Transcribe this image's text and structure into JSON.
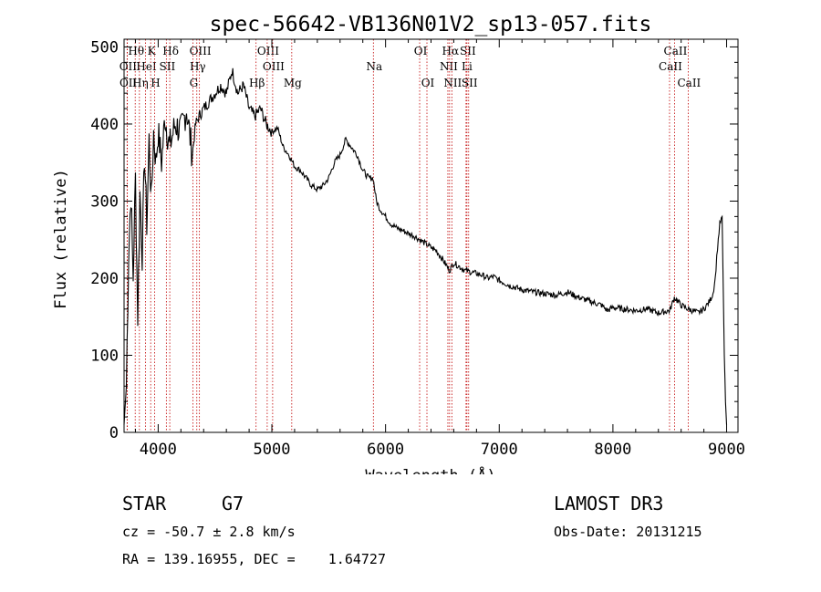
{
  "chart_data": {
    "type": "line",
    "title": "spec-56642-VB136N01V2_sp13-057.fits",
    "xlabel": "Wavelength (Å)",
    "ylabel": "Flux (relative)",
    "xlim": [
      3700,
      9100
    ],
    "ylim": [
      0,
      510
    ],
    "xticks": [
      4000,
      5000,
      6000,
      7000,
      8000,
      9000
    ],
    "yticks": [
      0,
      100,
      200,
      300,
      400,
      500
    ],
    "grid": false,
    "series": [
      {
        "name": "Flux",
        "x": [
          3700,
          3720,
          3740,
          3760,
          3780,
          3800,
          3820,
          3840,
          3860,
          3880,
          3900,
          3920,
          3940,
          3960,
          3980,
          4000,
          4030,
          4060,
          4100,
          4150,
          4200,
          4250,
          4300,
          4330,
          4360,
          4400,
          4450,
          4500,
          4550,
          4600,
          4650,
          4700,
          4750,
          4800,
          4850,
          4900,
          4950,
          5000,
          5050,
          5100,
          5150,
          5200,
          5250,
          5300,
          5350,
          5400,
          5450,
          5500,
          5550,
          5600,
          5650,
          5700,
          5750,
          5800,
          5850,
          5890,
          5920,
          5950,
          6000,
          6050,
          6100,
          6150,
          6200,
          6250,
          6300,
          6350,
          6400,
          6450,
          6500,
          6563,
          6600,
          6650,
          6700,
          6750,
          6800,
          6850,
          6900,
          6950,
          7000,
          7100,
          7200,
          7300,
          7400,
          7500,
          7600,
          7700,
          7800,
          7900,
          7950,
          8000,
          8100,
          8200,
          8300,
          8400,
          8500,
          8540,
          8600,
          8660,
          8700,
          8750,
          8800,
          8850,
          8880,
          8900,
          8920,
          8940,
          8960,
          8980,
          8990,
          9000
        ],
        "values": [
          10,
          60,
          230,
          310,
          200,
          330,
          150,
          310,
          230,
          360,
          270,
          380,
          300,
          390,
          350,
          390,
          350,
          410,
          370,
          400,
          390,
          420,
          360,
          400,
          410,
          420,
          430,
          440,
          450,
          440,
          470,
          440,
          450,
          420,
          410,
          420,
          400,
          390,
          395,
          370,
          360,
          345,
          340,
          330,
          320,
          315,
          320,
          330,
          350,
          360,
          380,
          370,
          360,
          340,
          330,
          330,
          300,
          290,
          280,
          270,
          265,
          262,
          258,
          255,
          250,
          245,
          240,
          235,
          225,
          210,
          220,
          215,
          210,
          208,
          206,
          204,
          200,
          202,
          197,
          190,
          185,
          182,
          180,
          178,
          182,
          175,
          170,
          165,
          158,
          162,
          160,
          158,
          160,
          155,
          158,
          175,
          165,
          160,
          158,
          155,
          160,
          170,
          180,
          200,
          240,
          270,
          280,
          100,
          40,
          10
        ]
      }
    ],
    "lines": [
      {
        "name": "Hθ",
        "wave": 3798,
        "row": 1
      },
      {
        "name": "OII",
        "wave": 3727,
        "row": 2
      },
      {
        "name": "OII",
        "wave": 3729,
        "row": 3
      },
      {
        "name": "K",
        "wave": 3934,
        "row": 1
      },
      {
        "name": "HeI",
        "wave": 3889,
        "row": 2
      },
      {
        "name": "Hη",
        "wave": 3835,
        "row": 3
      },
      {
        "name": "Hδ",
        "wave": 4102,
        "row": 1
      },
      {
        "name": "SII",
        "wave": 4072,
        "row": 2
      },
      {
        "name": "H",
        "wave": 3969,
        "row": 3
      },
      {
        "name": "OIII",
        "wave": 4363,
        "row": 1
      },
      {
        "name": "Hγ",
        "wave": 4340,
        "row": 2
      },
      {
        "name": "G",
        "wave": 4305,
        "row": 3
      },
      {
        "name": "OIII",
        "wave": 4959,
        "row": 1
      },
      {
        "name": "OIII",
        "wave": 5007,
        "row": 2
      },
      {
        "name": "Hβ",
        "wave": 4861,
        "row": 3
      },
      {
        "name": "Mg",
        "wave": 5175,
        "row": 3
      },
      {
        "name": "Na",
        "wave": 5893,
        "row": 2
      },
      {
        "name": "OI",
        "wave": 6300,
        "row": 1
      },
      {
        "name": "OI",
        "wave": 6364,
        "row": 3
      },
      {
        "name": "Hα",
        "wave": 6563,
        "row": 1
      },
      {
        "name": "NII",
        "wave": 6548,
        "row": 2
      },
      {
        "name": "NII",
        "wave": 6583,
        "row": 3
      },
      {
        "name": "SII",
        "wave": 6716,
        "row": 1
      },
      {
        "name": "Li",
        "wave": 6708,
        "row": 2
      },
      {
        "name": "SII",
        "wave": 6731,
        "row": 3
      },
      {
        "name": "CaII",
        "wave": 8542,
        "row": 1
      },
      {
        "name": "CaII",
        "wave": 8498,
        "row": 2
      },
      {
        "name": "CaII",
        "wave": 8662,
        "row": 3
      }
    ]
  },
  "info": {
    "object_class": "STAR",
    "subclass": "G7",
    "survey": "LAMOST DR3",
    "cz": "cz = -50.7 ± 2.8 km/s",
    "obs_date": "Obs-Date: 20131215",
    "coords": "RA = 139.16955, DEC =    1.64727"
  },
  "colors": {
    "axis": "#000000",
    "spectrum": "#000000",
    "line_marker": "#c00000"
  }
}
